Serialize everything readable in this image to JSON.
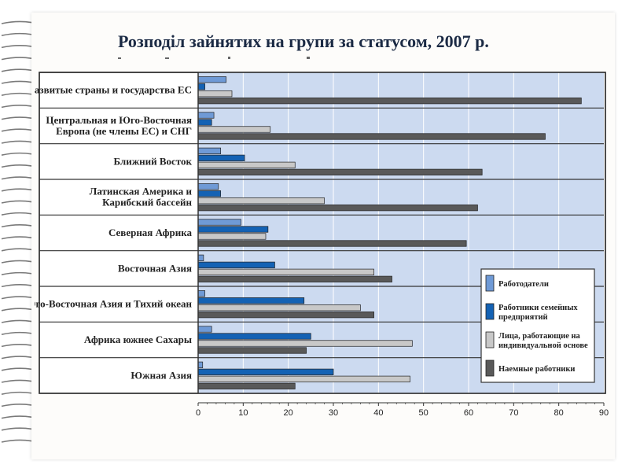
{
  "slide": {
    "title": "Розподіл зайнятих на групи за статусом, 2007 р."
  },
  "chart_data": {
    "type": "bar",
    "orientation": "horizontal",
    "categories": [
      "Развитые страны и государства ЕС",
      "Центральная и Юго-Восточная Европа (не члены ЕС) и СНГ",
      "Ближний Восток",
      "Латинская Америка и Карибский бассейн",
      "Северная Африка",
      "Восточная Азия",
      "Юго-Восточная Азия и Тихий океан",
      "Африка южнее Сахары",
      "Южная Азия"
    ],
    "category_lines": [
      [
        "Развитые страны и государства ЕС"
      ],
      [
        "Центральная и Юго-Восточная",
        "Европа (не члены ЕС) и СНГ"
      ],
      [
        "Ближний Восток"
      ],
      [
        "Латинская Америка и",
        "Карибский бассейн"
      ],
      [
        "Северная Африка"
      ],
      [
        "Восточная Азия"
      ],
      [
        "Юго-Восточная Азия и Тихий океан"
      ],
      [
        "Африка южнее Сахары"
      ],
      [
        "Южная Азия"
      ]
    ],
    "series": [
      {
        "name": "Работодатели",
        "legend_lines": [
          "Работодатели"
        ],
        "color": "#6f9ad6",
        "values": [
          6.2,
          3.5,
          5.0,
          4.5,
          9.5,
          1.2,
          1.5,
          3.0,
          1.0
        ]
      },
      {
        "name": "Работники семейных предприятий",
        "legend_lines": [
          "Работники семейных",
          "предприятий"
        ],
        "color": "#1462b4",
        "values": [
          1.5,
          3.0,
          10.3,
          5.0,
          15.5,
          17.0,
          23.5,
          25.0,
          30.0
        ]
      },
      {
        "name": "Лица, работающие на индивидуальной основе",
        "legend_lines": [
          "Лица, работающие на",
          "индивидуальной основе"
        ],
        "color": "#c8c8c8",
        "values": [
          7.5,
          16.0,
          21.5,
          28.0,
          15.0,
          39.0,
          36.0,
          47.5,
          47.0
        ]
      },
      {
        "name": "Наемные работники",
        "legend_lines": [
          "Наемные работники"
        ],
        "color": "#595959",
        "values": [
          85.0,
          77.0,
          63.0,
          62.0,
          59.5,
          43.0,
          39.0,
          24.0,
          21.5
        ]
      }
    ],
    "xlim": [
      0,
      90
    ],
    "x_ticks": [
      "0",
      "10",
      "20",
      "30",
      "40",
      "50",
      "60",
      "70",
      "80",
      "90"
    ],
    "grid": true,
    "legend_position": "bottom-right"
  }
}
